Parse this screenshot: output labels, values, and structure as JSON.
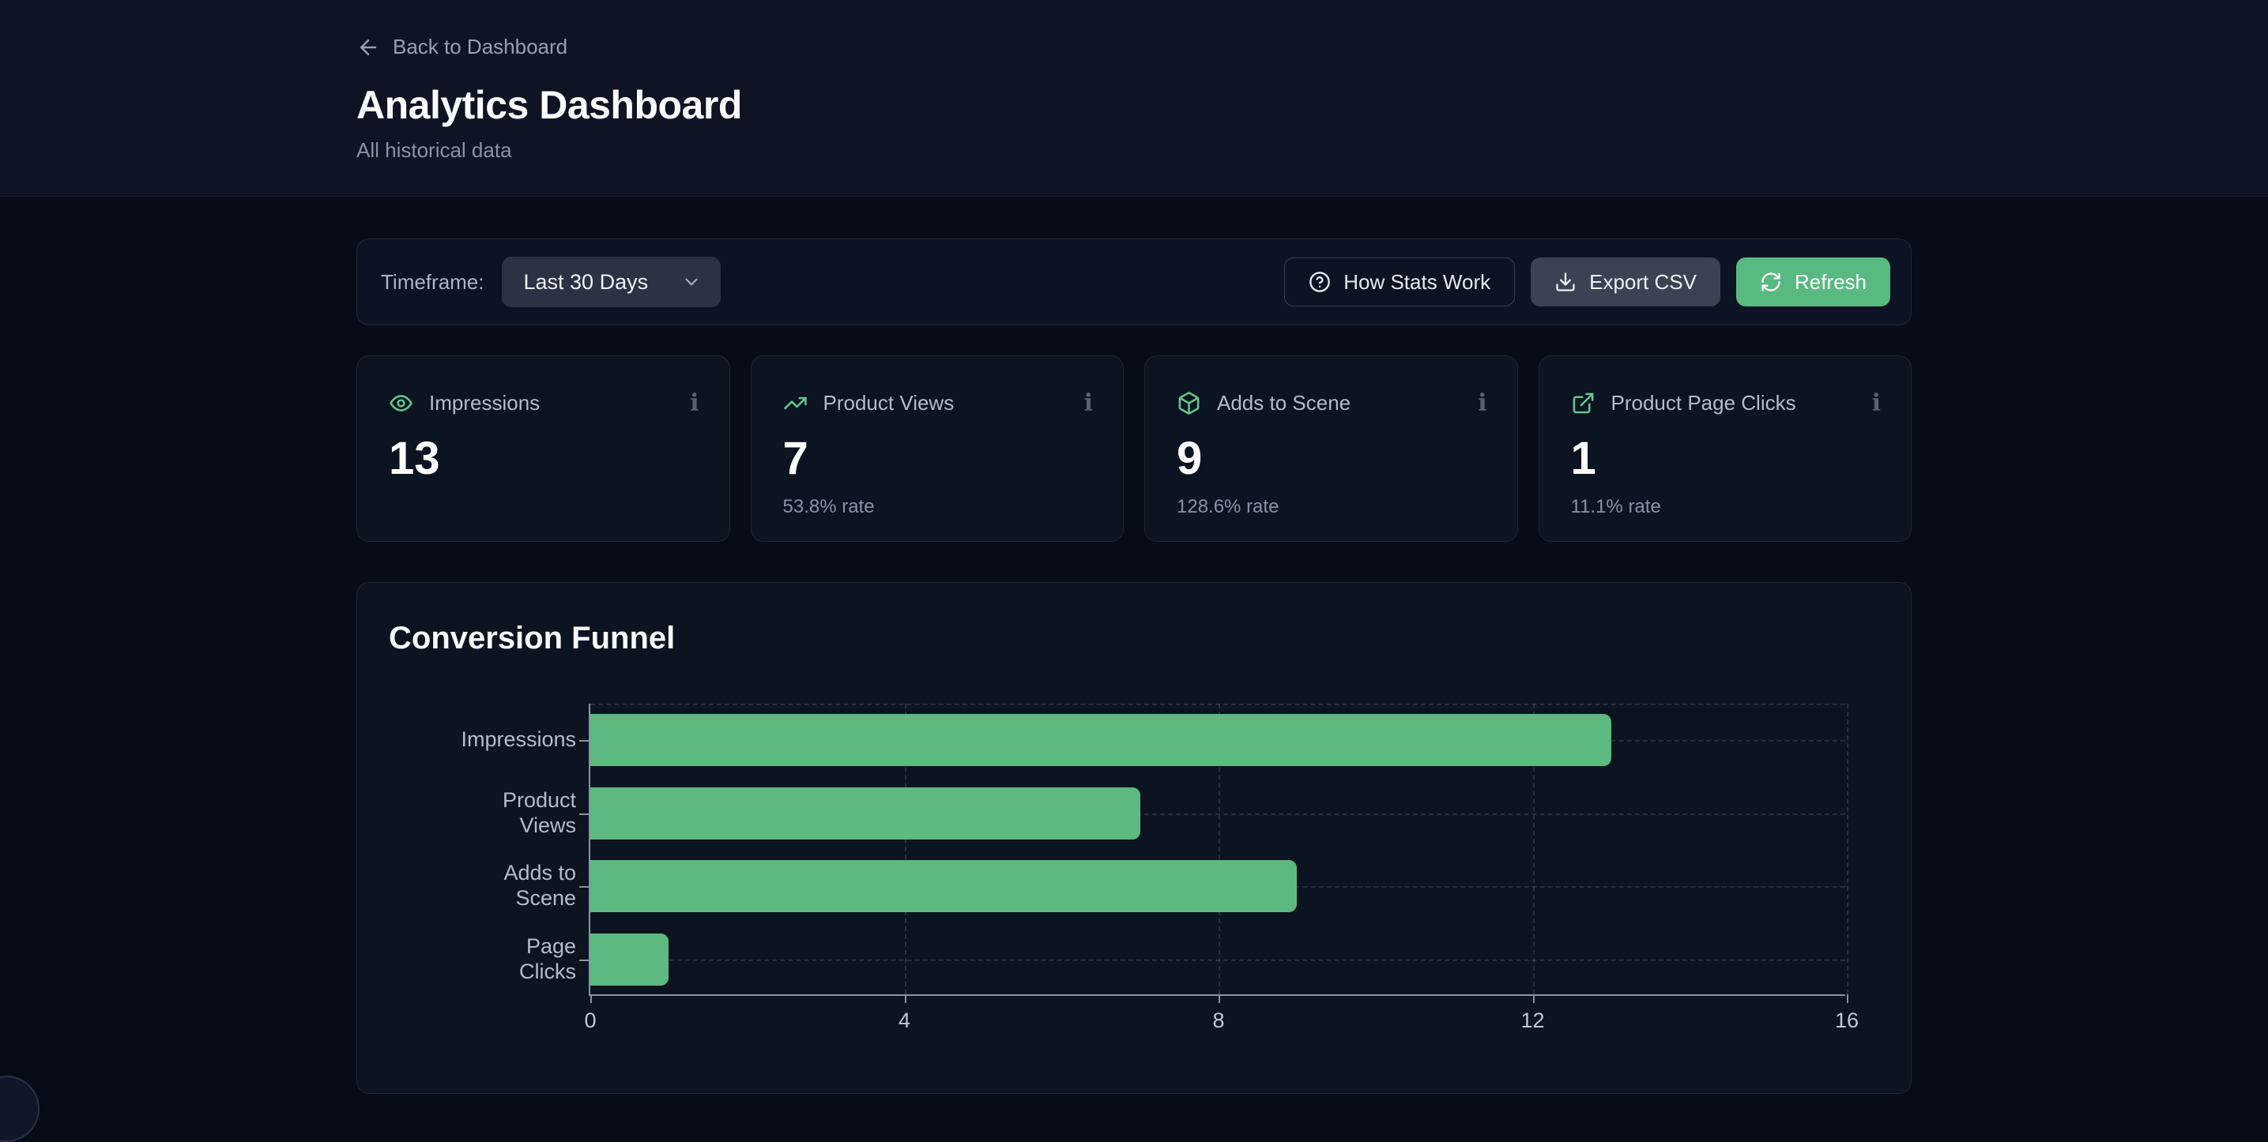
{
  "header": {
    "back_label": "Back to Dashboard",
    "title": "Analytics Dashboard",
    "subtitle": "All historical data"
  },
  "toolbar": {
    "timeframe_label": "Timeframe:",
    "timeframe_value": "Last 30 Days",
    "how_stats_label": "How Stats Work",
    "export_label": "Export CSV",
    "refresh_label": "Refresh"
  },
  "stats": [
    {
      "icon": "eye-icon",
      "label": "Impressions",
      "value": "13",
      "rate": ""
    },
    {
      "icon": "trending-up-icon",
      "label": "Product Views",
      "value": "7",
      "rate": "53.8% rate"
    },
    {
      "icon": "package-icon",
      "label": "Adds to Scene",
      "value": "9",
      "rate": "128.6% rate"
    },
    {
      "icon": "external-link-icon",
      "label": "Product Page Clicks",
      "value": "1",
      "rate": "11.1% rate"
    }
  ],
  "ui": {
    "info_glyph": "i"
  },
  "chart": {
    "title": "Conversion Funnel"
  },
  "chart_data": {
    "type": "bar",
    "orientation": "horizontal",
    "title": "Conversion Funnel",
    "categories": [
      "Impressions",
      "Product Views",
      "Adds to Scene",
      "Page Clicks"
    ],
    "tick_label_lines": [
      [
        "Impressions"
      ],
      [
        "Product",
        "Views"
      ],
      [
        "Adds to",
        "Scene"
      ],
      [
        "Page",
        "Clicks"
      ]
    ],
    "values": [
      13,
      7,
      9,
      1
    ],
    "xlabel": "",
    "ylabel": "",
    "xlim": [
      0,
      16
    ],
    "xticks": [
      0,
      4,
      8,
      12,
      16
    ],
    "grid": true,
    "legend": false,
    "bar_color": "#5cb97f"
  },
  "colors": {
    "accent_green": "#58ba80",
    "bar_green": "#5cb97f",
    "icon_green": "#63c68c",
    "page_bg": "#080c17",
    "header_bg": "#0e1424",
    "card_bg": "#0c1321"
  }
}
